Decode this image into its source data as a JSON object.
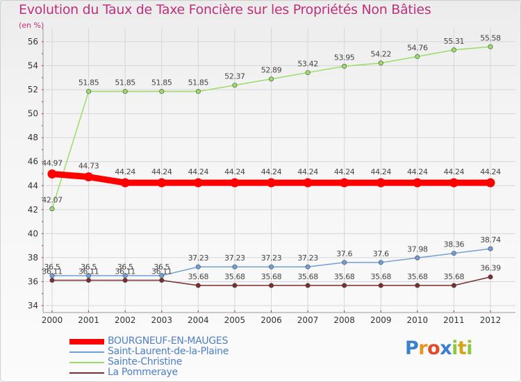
{
  "page": {
    "title": "Evolution du Taux de Taxe Foncière sur les Propriétés Non Bâties",
    "unit": "(en %)",
    "logo": {
      "letters": [
        "P",
        "r",
        "o",
        "x",
        "i",
        "t",
        "i"
      ],
      "colors": [
        "#3a7fd0",
        "#e8951e",
        "#e34a2a",
        "#3a7fd0",
        "#8dc63f",
        "#d4a31a",
        "#8dc63f"
      ]
    }
  },
  "chart_data": {
    "type": "line",
    "title": "Evolution du Taux de Taxe Foncière sur les Propriétés Non Bâties",
    "ylabel": "(en %)",
    "xlabel": "",
    "categories": [
      "2000",
      "2001",
      "2002",
      "2003",
      "2004",
      "2005",
      "2006",
      "2007",
      "2008",
      "2009",
      "2010",
      "2011",
      "2012"
    ],
    "ylim": [
      34,
      56
    ],
    "yticks": [
      34,
      36,
      38,
      40,
      42,
      44,
      46,
      48,
      50,
      52,
      54,
      56
    ],
    "grid": true,
    "legend_position": "bottom-left",
    "series": [
      {
        "name": "BOURGNEUF-EN-MAUGES",
        "color": "#ff0000",
        "values": [
          44.97,
          44.73,
          44.24,
          44.24,
          44.24,
          44.24,
          44.24,
          44.24,
          44.24,
          44.24,
          44.24,
          44.24,
          44.24
        ],
        "labels": [
          "44.97",
          "44.73",
          "44.24",
          "44.24",
          "44.24",
          "44.24",
          "44.24",
          "44.24",
          "44.24",
          "44.24",
          "44.24",
          "44.24",
          "44.24"
        ]
      },
      {
        "name": "Saint-Laurent-de-la-Plaine",
        "color": "#6e9fd6",
        "values": [
          36.5,
          36.5,
          36.5,
          36.5,
          37.23,
          37.23,
          37.23,
          37.23,
          37.6,
          37.6,
          37.98,
          38.36,
          38.74
        ],
        "labels": [
          "36.5",
          "36.5",
          "36.5",
          "36.5",
          "37.23",
          "37.23",
          "37.23",
          "37.23",
          "37.6",
          "37.6",
          "37.98",
          "38.36",
          "38.74"
        ]
      },
      {
        "name": "Sainte-Christine",
        "color": "#99dd66",
        "values": [
          42.07,
          51.85,
          51.85,
          51.85,
          51.85,
          52.37,
          52.89,
          53.42,
          53.95,
          54.22,
          54.76,
          55.31,
          55.58
        ],
        "labels": [
          "42.07",
          "51.85",
          "51.85",
          "51.85",
          "51.85",
          "52.37",
          "52.89",
          "53.42",
          "53.95",
          "54.22",
          "54.76",
          "55.31",
          "55.58"
        ]
      },
      {
        "name": "La Pommeraye",
        "color": "#7a2e2e",
        "values": [
          36.11,
          36.11,
          36.11,
          36.11,
          35.68,
          35.68,
          35.68,
          35.68,
          35.68,
          35.68,
          35.68,
          35.68,
          36.39
        ],
        "labels": [
          "36.11",
          "36.11",
          "36.11",
          "36.11",
          "35.68",
          "35.68",
          "35.68",
          "35.68",
          "35.68",
          "35.68",
          "35.68",
          "35.68",
          "36.39"
        ]
      }
    ]
  }
}
